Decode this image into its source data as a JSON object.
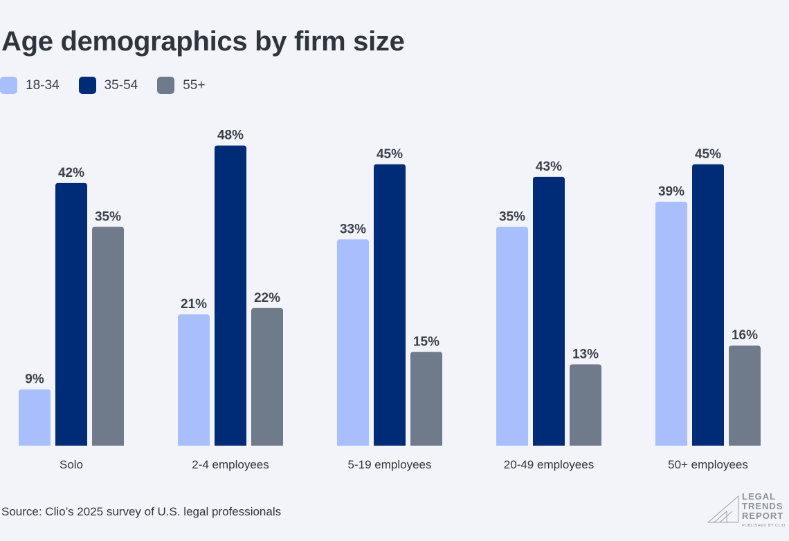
{
  "chart_data": {
    "type": "bar",
    "title": "Age demographics by firm size",
    "categories": [
      "Solo",
      "2-4 employees",
      "5-19 employees",
      "20-49 employees",
      "50+ employees"
    ],
    "series": [
      {
        "name": "18-34",
        "color": "#a9bffd",
        "values": [
          9,
          21,
          33,
          35,
          39
        ]
      },
      {
        "name": "35-54",
        "color": "#002b76",
        "values": [
          42,
          48,
          45,
          43,
          45
        ]
      },
      {
        "name": "55+",
        "color": "#6f7a8a",
        "values": [
          35,
          22,
          15,
          13,
          16
        ]
      }
    ],
    "value_suffix": "%",
    "ylim": [
      0,
      48
    ],
    "legend": "top-left",
    "grid": false
  },
  "source": "Source: Clio’s 2025 survey of U.S. legal professionals",
  "logo": {
    "lines": [
      "LEGAL",
      "TRENDS",
      "REPORT"
    ],
    "sub": "PUBLISHED BY CLIO"
  }
}
